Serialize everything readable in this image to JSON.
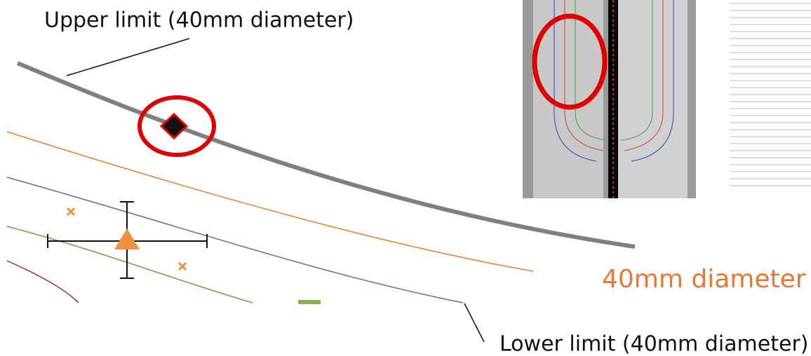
{
  "labels": {
    "upper": "Upper limit (40mm diameter)",
    "diameter": "40mm diameter",
    "lower": "Lower limit (40mm diameter)"
  }
}
